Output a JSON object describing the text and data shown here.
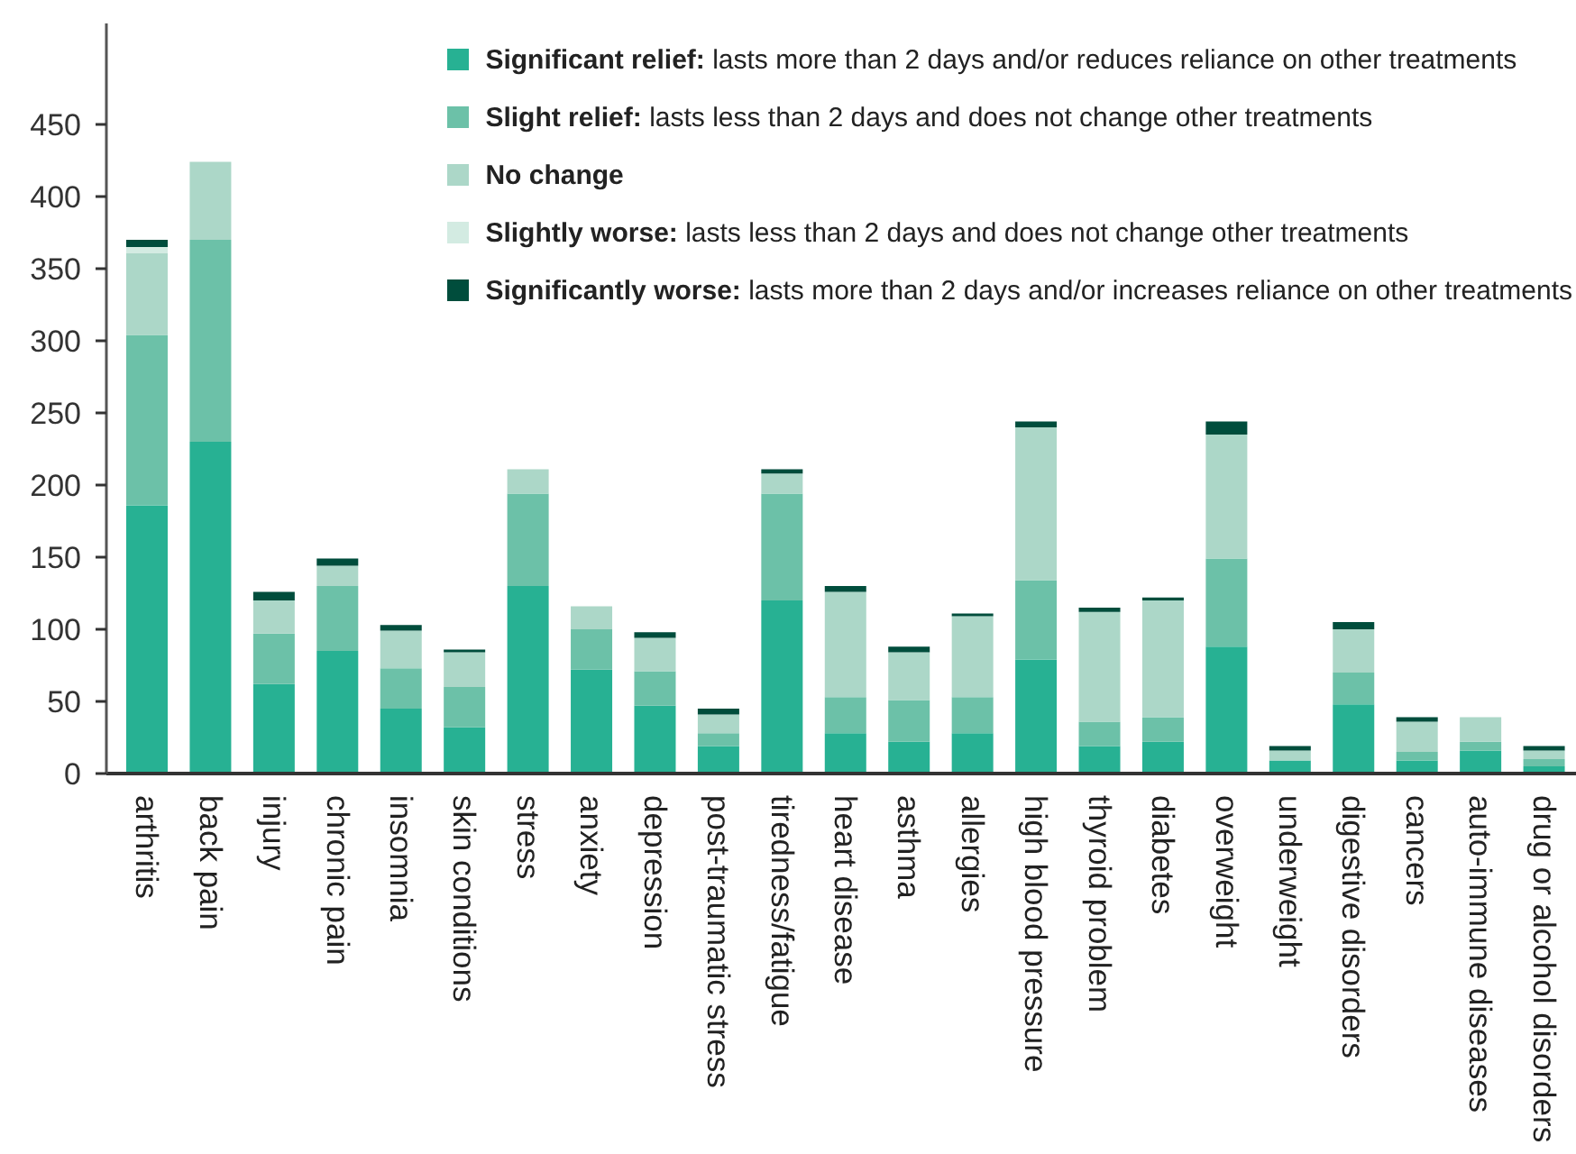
{
  "chart_data": {
    "type": "bar",
    "stacked": true,
    "categories": [
      "arthritis",
      "back pain",
      "injury",
      "chronic pain",
      "insomnia",
      "skin conditions",
      "stress",
      "anxiety",
      "depression",
      "post-traumatic stress",
      "tiredness/fatigue",
      "heart disease",
      "asthma",
      "allergies",
      "high blood pressure",
      "thyroid problem",
      "diabetes",
      "overweight",
      "underweight",
      "digestive disorders",
      "cancers",
      "auto-immune diseases",
      "drug or alcohol disorders"
    ],
    "series": [
      {
        "name": "Significant relief: lasts more than 2 days and/or reduces reliance on other treatments",
        "color": "#27b193",
        "values": [
          186,
          230,
          62,
          85,
          45,
          32,
          130,
          72,
          47,
          19,
          120,
          28,
          22,
          28,
          79,
          19,
          22,
          88,
          9,
          48,
          9,
          16,
          5
        ]
      },
      {
        "name": "Slight relief: lasts less than 2 days and does not change other treatments",
        "color": "#6cc1a8",
        "values": [
          118,
          140,
          35,
          45,
          28,
          28,
          64,
          28,
          24,
          9,
          74,
          25,
          29,
          25,
          55,
          17,
          17,
          61,
          null,
          22,
          6,
          6,
          5
        ]
      },
      {
        "name": "No change",
        "color": "#acd7c8",
        "values": [
          57,
          54,
          23,
          14,
          26,
          24,
          17,
          16,
          23,
          13,
          14,
          73,
          33,
          56,
          106,
          76,
          81,
          86,
          7,
          30,
          21,
          17,
          6
        ]
      },
      {
        "name": "Slightly worse: lasts less than 2 days and does not change other treatments",
        "color": "#d3ebe2",
        "values": [
          4,
          null,
          null,
          null,
          null,
          null,
          null,
          null,
          null,
          null,
          null,
          null,
          null,
          null,
          null,
          null,
          null,
          null,
          null,
          null,
          null,
          null,
          null
        ]
      },
      {
        "name": "Significantly worse: lasts more than 2 days and/or increases reliance on other treatments",
        "color": "#004d3c",
        "values": [
          5,
          null,
          6,
          5,
          4,
          2,
          null,
          null,
          4,
          4,
          3,
          4,
          4,
          2,
          4,
          3,
          2,
          9,
          3,
          5,
          3,
          null,
          3
        ]
      }
    ],
    "ylim": [
      0,
      520
    ],
    "yticks": [
      0,
      50,
      100,
      150,
      200,
      250,
      300,
      350,
      400,
      450
    ],
    "legend": "top right"
  }
}
